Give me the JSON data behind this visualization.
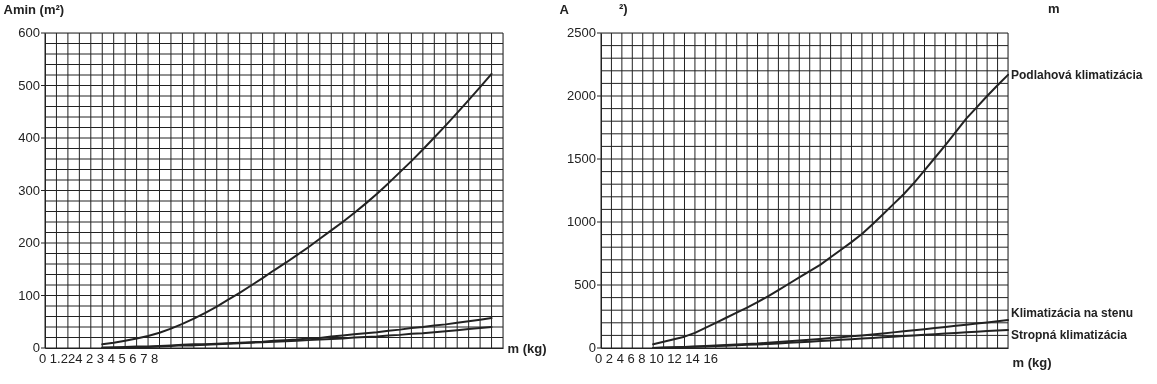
{
  "chart_data": [
    {
      "type": "line",
      "ylabel": "Amin (m²)",
      "xlabel": "m (kg)",
      "grid": true,
      "categories": [
        null,
        null,
        null,
        null,
        null,
        null,
        null,
        null,
        null,
        null,
        null,
        null,
        null,
        null,
        null,
        null,
        null,
        null,
        null,
        null,
        null,
        null,
        null,
        null,
        null,
        null,
        null,
        null,
        null,
        null,
        null,
        null,
        null,
        null,
        null,
        null,
        null,
        null,
        null,
        null,
        null
      ],
      "ylim": [
        0,
        600
      ],
      "yticks": [
        0,
        {
          "value": 20,
          "label": null
        },
        {
          "value": 40,
          "label": null
        },
        {
          "value": 60,
          "label": null
        },
        {
          "value": 80,
          "label": null
        },
        100,
        {
          "value": 120,
          "label": null
        },
        {
          "value": 140,
          "label": null
        },
        {
          "value": 160,
          "label": null
        },
        {
          "value": 180,
          "label": null
        },
        200,
        {
          "value": 220,
          "label": null
        },
        {
          "value": 240,
          "label": null
        },
        {
          "value": 260,
          "label": null
        },
        {
          "value": 280,
          "label": null
        },
        300,
        {
          "value": 320,
          "label": null
        },
        {
          "value": 340,
          "label": null
        },
        {
          "value": 360,
          "label": null
        },
        {
          "value": 380,
          "label": null
        },
        400,
        {
          "value": 420,
          "label": null
        },
        {
          "value": 440,
          "label": null
        },
        {
          "value": 460,
          "label": null
        },
        {
          "value": 480,
          "label": null
        },
        500,
        {
          "value": 520,
          "label": null
        },
        {
          "value": 540,
          "label": null
        },
        {
          "value": 560,
          "label": null
        },
        {
          "value": 580,
          "label": null
        },
        600
      ],
      "annotations": [
        "0 1.224 2 3 4 5 6 7 8"
      ],
      "series": [
        {
          "color": "#222222",
          "values": [
            null,
            null,
            null,
            null,
            null,
            7,
            10,
            14,
            18,
            23,
            29,
            37,
            46,
            56,
            67,
            79,
            92,
            105,
            119,
            133,
            148,
            162,
            177,
            192,
            208,
            224,
            240,
            257,
            275,
            294,
            314,
            335,
            356,
            378,
            401,
            424,
            448,
            472,
            497,
            522,
            null
          ]
        },
        {
          "color": "#222222",
          "values": [
            null,
            null,
            null,
            null,
            null,
            1,
            1,
            2,
            3,
            3,
            4,
            5,
            6,
            7,
            7,
            8,
            9,
            10,
            11,
            12,
            14,
            15,
            16,
            18,
            19,
            22,
            24,
            26,
            28,
            30,
            33,
            35,
            38,
            40,
            43,
            45,
            48,
            51,
            54,
            57,
            null
          ]
        },
        {
          "color": "#222222",
          "values": [
            null,
            null,
            null,
            null,
            null,
            0,
            1,
            1,
            2,
            2,
            3,
            4,
            5,
            5,
            6,
            7,
            8,
            9,
            10,
            11,
            12,
            13,
            14,
            15,
            16,
            17,
            18,
            20,
            21,
            22,
            24,
            25,
            27,
            28,
            30,
            32,
            34,
            36,
            38,
            40,
            null
          ]
        }
      ]
    },
    {
      "type": "line",
      "ylabel": "A",
      "xlabel": "m (kg)",
      "grid": true,
      "categories": [
        null,
        null,
        null,
        null,
        null,
        null,
        null,
        null,
        null,
        null,
        null,
        null,
        null,
        null,
        null,
        null,
        null,
        null,
        null,
        null,
        null,
        null,
        null,
        null,
        null,
        null,
        null,
        null,
        null,
        null,
        null,
        null,
        null,
        null,
        null,
        null,
        null,
        null,
        null,
        null
      ],
      "ylim": [
        0,
        2500
      ],
      "yticks": [
        0,
        {
          "value": 100,
          "label": null
        },
        {
          "value": 200,
          "label": null
        },
        {
          "value": 300,
          "label": null
        },
        {
          "value": 400,
          "label": null
        },
        500,
        {
          "value": 600,
          "label": null
        },
        {
          "value": 700,
          "label": null
        },
        {
          "value": 800,
          "label": null
        },
        {
          "value": 900,
          "label": null
        },
        1000,
        {
          "value": 1100,
          "label": null
        },
        {
          "value": 1200,
          "label": null
        },
        {
          "value": 1300,
          "label": null
        },
        {
          "value": 1400,
          "label": null
        },
        1500,
        {
          "value": 1600,
          "label": null
        },
        {
          "value": 1700,
          "label": null
        },
        {
          "value": 1800,
          "label": null
        },
        {
          "value": 1900,
          "label": null
        },
        2000,
        {
          "value": 2100,
          "label": null
        },
        {
          "value": 2200,
          "label": null
        },
        {
          "value": 2300,
          "label": null
        },
        {
          "value": 2400,
          "label": null
        },
        2500
      ],
      "annotations": [
        "0 2 4 6 8 10 12 14 16",
        "²)",
        "m"
      ],
      "series": [
        {
          "name": "Podlahová klimatizácia",
          "color": "#222222",
          "values": [
            null,
            null,
            null,
            null,
            null,
            30,
            50,
            70,
            90,
            120,
            160,
            200,
            240,
            280,
            320,
            365,
            410,
            460,
            510,
            560,
            610,
            660,
            720,
            780,
            840,
            905,
            980,
            1060,
            1140,
            1220,
            1310,
            1410,
            1510,
            1610,
            1715,
            1820,
            1910,
            2000,
            2085,
            2168
          ]
        },
        {
          "name": "Klimatizácia na stenu",
          "color": "#222222",
          "values": [
            null,
            null,
            null,
            null,
            null,
            0,
            3,
            5,
            8,
            11,
            15,
            19,
            23,
            27,
            31,
            35,
            41,
            47,
            53,
            59,
            65,
            72,
            79,
            86,
            93,
            100,
            108,
            116,
            124,
            132,
            140,
            149,
            158,
            167,
            176,
            185,
            194,
            203,
            212,
            222
          ]
        },
        {
          "name": "Stropná klimatizácia",
          "color": "#222222",
          "values": [
            null,
            null,
            null,
            null,
            null,
            0,
            2,
            4,
            7,
            9,
            12,
            15,
            18,
            22,
            25,
            28,
            32,
            36,
            41,
            45,
            50,
            55,
            60,
            65,
            70,
            75,
            80,
            85,
            90,
            95,
            100,
            105,
            110,
            115,
            120,
            125,
            129,
            134,
            138,
            143
          ]
        }
      ]
    }
  ]
}
